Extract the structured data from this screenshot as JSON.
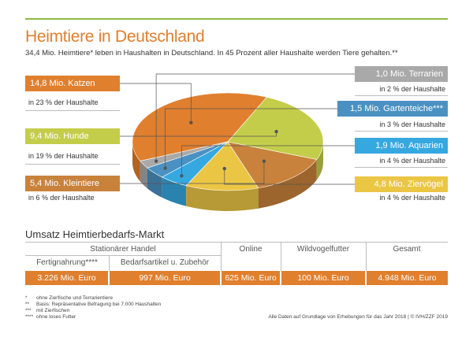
{
  "title": "Heimtiere in Deutschland",
  "subtitle": "34,4 Mio. Heimtiere* leben in Haushalten in Deutschland. In 45 Prozent aller Haushalte werden Tiere gehalten.**",
  "colors": {
    "katzen": "#e07f2e",
    "hunde": "#c4cd4a",
    "kleintiere": "#c8823b",
    "ziervoegel": "#ebc645",
    "aquarien": "#36a8e0",
    "gartenteiche": "#4a91c2",
    "terrarien": "#a9a9a9",
    "accent_line": "#8dbb3f"
  },
  "labels": {
    "katzen": {
      "name": "14,8 Mio. Katzen",
      "share": "in 23 % der Haushalte"
    },
    "hunde": {
      "name": "9,4 Mio. Hunde",
      "share": "in 19 % der Haushalte"
    },
    "kleintiere": {
      "name": "5,4 Mio. Kleintiere",
      "share": "in 6 % der Haushalte"
    },
    "terrarien": {
      "name": "1,0 Mio. Terrarien",
      "share": "in 2 % der Haushalte"
    },
    "gartenteiche": {
      "name": "1,5 Mio. Gartenteiche***",
      "share": "in 3 % der Haushalte"
    },
    "aquarien": {
      "name": "1,9 Mio. Aquarien",
      "share": "in 4 % der Haushalte"
    },
    "ziervoegel": {
      "name": "4,8 Mio. Ziervögel",
      "share": "in 4 % der Haushalte"
    }
  },
  "chart_data": {
    "type": "pie",
    "title": "Heimtiere in Deutschland",
    "unit": "Mio.",
    "slices": [
      {
        "name": "Katzen",
        "value": 14.8,
        "households_pct": 23,
        "color": "#e07f2e"
      },
      {
        "name": "Terrarien",
        "value": 1.0,
        "households_pct": 2,
        "color": "#a9a9a9"
      },
      {
        "name": "Gartenteiche",
        "value": 1.5,
        "households_pct": 3,
        "color": "#4a91c2"
      },
      {
        "name": "Aquarien",
        "value": 1.9,
        "households_pct": 4,
        "color": "#36a8e0"
      },
      {
        "name": "Ziervögel",
        "value": 4.8,
        "households_pct": 4,
        "color": "#ebc645"
      },
      {
        "name": "Kleintiere",
        "value": 5.4,
        "households_pct": 6,
        "color": "#c8823b"
      },
      {
        "name": "Hunde",
        "value": 9.4,
        "households_pct": 19,
        "color": "#c4cd4a"
      }
    ]
  },
  "table": {
    "title": "Umsatz Heimtierbedarfs-Markt",
    "group_header": "Stationärer Handel",
    "headers": [
      "Fertignahrung****",
      "Bedarfsartikel u. Zubehör",
      "Online",
      "Wildvogelfutter",
      "Gesamt"
    ],
    "values": [
      "3.226 Mio. Euro",
      "997 Mio. Euro",
      "625 Mio. Euro",
      "100 Mio. Euro",
      "4.948 Mio. Euro"
    ]
  },
  "footnotes": [
    {
      "mark": "*",
      "text": "ohne Zierfische und Terrarientiere"
    },
    {
      "mark": "**",
      "text": "Basis: Repräsentative Befragung bei 7.000 Haushalten"
    },
    {
      "mark": "***",
      "text": "mit Zierfischen"
    },
    {
      "mark": "****",
      "text": "ohne loses Futter"
    }
  ],
  "credit": "Alle Daten auf Grundlage von Erhebungen für das Jahr 2018 | © IVH/ZZF 2019"
}
